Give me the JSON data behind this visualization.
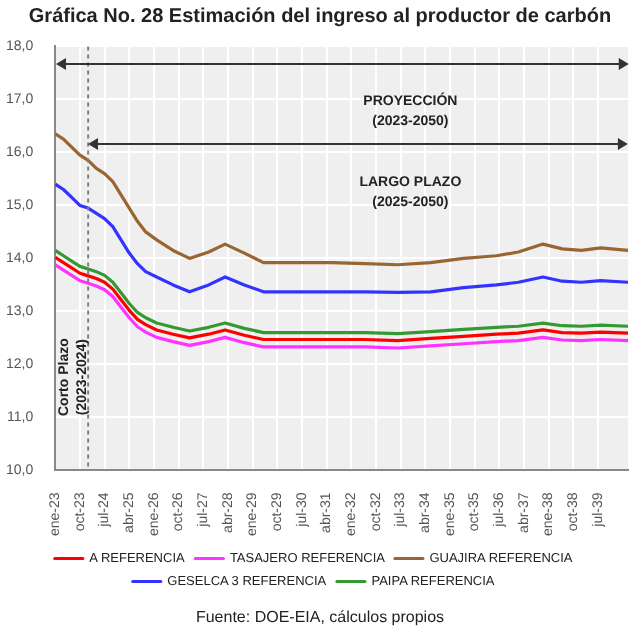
{
  "chart_data": {
    "type": "line",
    "title": "Gráfica No. 28 Estimación del ingreso al productor de carbón",
    "x": [
      "2023-01",
      "2023-04",
      "2023-07",
      "2023-10",
      "2024-01",
      "2024-04",
      "2024-07",
      "2024-10",
      "2025-01",
      "2025-04",
      "2025-07",
      "2025-10",
      "2026-02",
      "2026-08",
      "2027-02",
      "2027-09",
      "2028-03",
      "2028-10",
      "2029-05",
      "2030-06",
      "2031-06",
      "2032-06",
      "2033-06",
      "2034-06",
      "2035-06",
      "2036-06",
      "2037-02",
      "2037-11",
      "2038-06",
      "2039-01",
      "2039-08",
      "2040-06"
    ],
    "series": [
      {
        "name": "A REFERENCIA",
        "color": "#ff0000",
        "values": [
          14.02,
          13.92,
          13.82,
          13.72,
          13.67,
          13.62,
          13.55,
          13.42,
          13.22,
          13.02,
          12.85,
          12.75,
          12.65,
          12.57,
          12.5,
          12.57,
          12.65,
          12.55,
          12.47,
          12.47,
          12.47,
          12.47,
          12.45,
          12.49,
          12.53,
          12.57,
          12.59,
          12.65,
          12.6,
          12.59,
          12.61,
          12.59
        ]
      },
      {
        "name": "TASAJERO REFERENCIA",
        "color": "#ff33ff",
        "values": [
          13.88,
          13.78,
          13.68,
          13.58,
          13.53,
          13.48,
          13.41,
          13.28,
          13.08,
          12.88,
          12.71,
          12.61,
          12.51,
          12.43,
          12.36,
          12.43,
          12.51,
          12.41,
          12.33,
          12.33,
          12.33,
          12.33,
          12.31,
          12.35,
          12.39,
          12.43,
          12.45,
          12.51,
          12.46,
          12.45,
          12.47,
          12.45
        ]
      },
      {
        "name": "GUAJIRA REFERENCIA",
        "color": "#996633",
        "values": [
          16.35,
          16.25,
          16.1,
          15.95,
          15.85,
          15.7,
          15.6,
          15.45,
          15.2,
          14.95,
          14.7,
          14.5,
          14.35,
          14.15,
          14.0,
          14.12,
          14.27,
          14.1,
          13.92,
          13.92,
          13.92,
          13.9,
          13.88,
          13.92,
          14.0,
          14.05,
          14.12,
          14.27,
          14.18,
          14.15,
          14.2,
          14.15
        ]
      },
      {
        "name": "GESELCA 3 REFERENCIA",
        "color": "#3333ff",
        "values": [
          15.4,
          15.3,
          15.15,
          15.0,
          14.95,
          14.85,
          14.75,
          14.6,
          14.35,
          14.1,
          13.9,
          13.75,
          13.65,
          13.5,
          13.37,
          13.5,
          13.65,
          13.5,
          13.37,
          13.37,
          13.37,
          13.37,
          13.36,
          13.37,
          13.45,
          13.5,
          13.55,
          13.65,
          13.57,
          13.55,
          13.58,
          13.55
        ]
      },
      {
        "name": "PAIPA REFERENCIA",
        "color": "#339933",
        "values": [
          14.15,
          14.05,
          13.95,
          13.85,
          13.8,
          13.75,
          13.68,
          13.55,
          13.35,
          13.15,
          12.98,
          12.88,
          12.78,
          12.7,
          12.63,
          12.7,
          12.78,
          12.68,
          12.6,
          12.6,
          12.6,
          12.6,
          12.58,
          12.62,
          12.66,
          12.7,
          12.72,
          12.78,
          12.73,
          12.72,
          12.74,
          12.72
        ]
      }
    ],
    "xlim": [
      "2023-01",
      "2040-06"
    ],
    "xticks": [
      {
        "value": "2023-01",
        "label": "ene-23"
      },
      {
        "value": "2023-10",
        "label": "oct-23"
      },
      {
        "value": "2024-07",
        "label": "jul-24"
      },
      {
        "value": "2025-04",
        "label": "abr-25"
      },
      {
        "value": "2026-01",
        "label": "ene-26"
      },
      {
        "value": "2026-10",
        "label": "oct-26"
      },
      {
        "value": "2027-07",
        "label": "jul-27"
      },
      {
        "value": "2028-04",
        "label": "abr-28"
      },
      {
        "value": "2029-01",
        "label": "ene-29"
      },
      {
        "value": "2029-10",
        "label": "oct-29"
      },
      {
        "value": "2030-07",
        "label": "jul-30"
      },
      {
        "value": "2031-04",
        "label": "abr-31"
      },
      {
        "value": "2032-01",
        "label": "ene-32"
      },
      {
        "value": "2032-10",
        "label": "oct-32"
      },
      {
        "value": "2033-07",
        "label": "jul-33"
      },
      {
        "value": "2034-04",
        "label": "abr-34"
      },
      {
        "value": "2035-01",
        "label": "ene-35"
      },
      {
        "value": "2035-10",
        "label": "oct-35"
      },
      {
        "value": "2036-07",
        "label": "jul-36"
      },
      {
        "value": "2037-04",
        "label": "abr-37"
      },
      {
        "value": "2038-01",
        "label": "ene-38"
      },
      {
        "value": "2038-10",
        "label": "oct-38"
      },
      {
        "value": "2039-07",
        "label": "jul-39"
      }
    ],
    "ylim": [
      10,
      18
    ],
    "yticks": [
      {
        "value": 10,
        "label": "10,0"
      },
      {
        "value": 11,
        "label": "11,0"
      },
      {
        "value": 12,
        "label": "12,0"
      },
      {
        "value": 13,
        "label": "13,0"
      },
      {
        "value": 14,
        "label": "14,0"
      },
      {
        "value": 15,
        "label": "15,0"
      },
      {
        "value": 16,
        "label": "16,0"
      },
      {
        "value": 17,
        "label": "17,0"
      },
      {
        "value": 18,
        "label": "18,0"
      }
    ],
    "ref_lines": [
      {
        "axis": "x",
        "value": "2024-01",
        "label": "Corto Plazo\n(2023-2024)",
        "line_style": "dotted",
        "color": "#808080"
      }
    ],
    "annotations": [
      "PROYECCIÓN\n(2023-2050)",
      "LARGO PLAZO\n(2025-2050)",
      "Fuente: DOE-EIA, cálculos propios"
    ],
    "grid": true,
    "legend": "bottom",
    "marker": "none",
    "line_style": "solid"
  }
}
